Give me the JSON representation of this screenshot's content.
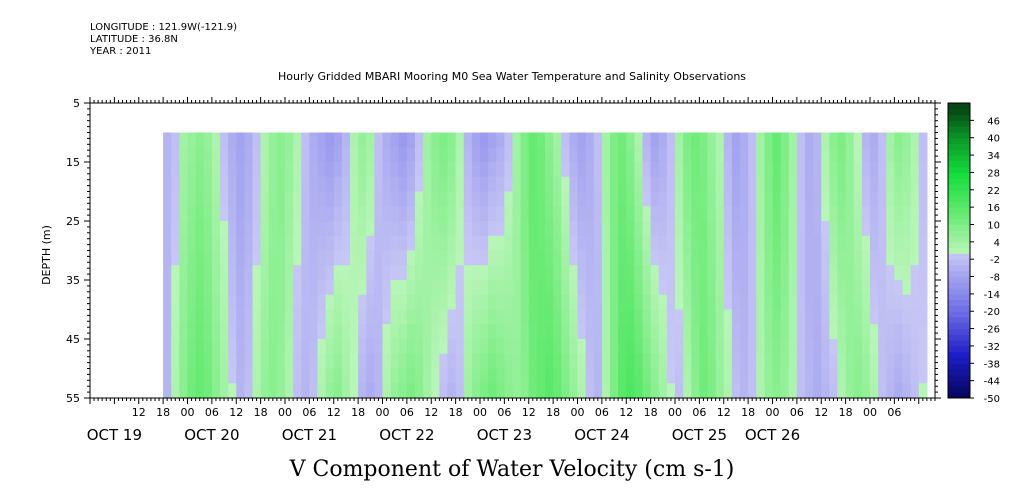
{
  "header": {
    "longitude": "LONGITUDE : 121.9W(-121.9)",
    "latitude": "LATITUDE : 36.8N",
    "year": "YEAR : 2011"
  },
  "chart_data": {
    "type": "heatmap",
    "title": "Hourly Gridded MBARI Mooring M0 Sea Water Temperature and Salinity Observations",
    "xlabel": "V Component of Water Velocity (cm s-1)",
    "ylabel": "DEPTH (m)",
    "ylim": [
      55,
      5
    ],
    "y_ticks": [
      5,
      15,
      25,
      35,
      45,
      55
    ],
    "data_depth_range": [
      10,
      55
    ],
    "x_hour_ticks": [
      "12",
      "18",
      "00",
      "06",
      "12",
      "18",
      "00",
      "06",
      "12",
      "18",
      "00",
      "06",
      "12",
      "18",
      "00",
      "06",
      "12",
      "18",
      "00",
      "06",
      "12",
      "18",
      "00",
      "06",
      "12",
      "18",
      "00",
      "06",
      "12",
      "18",
      "00",
      "06"
    ],
    "x_hour_ticks_hours_since_oct19_00": [
      12,
      18,
      24,
      30,
      36,
      42,
      48,
      54,
      60,
      66,
      72,
      78,
      84,
      90,
      96,
      102,
      108,
      114,
      120,
      126,
      132,
      138,
      144,
      150,
      156,
      162,
      168,
      174,
      180,
      186,
      192,
      198
    ],
    "x_day_labels": [
      "OCT 19",
      "OCT 20",
      "OCT 21",
      "OCT 22",
      "OCT 23",
      "OCT 24",
      "OCT 25",
      "OCT 26"
    ],
    "x_day_labels_hours": [
      6,
      30,
      54,
      78,
      102,
      126,
      150,
      168
    ],
    "x_data_range_hours": [
      18,
      206
    ],
    "columns_hours": [
      18,
      20,
      22,
      24,
      26,
      28,
      30,
      32,
      34,
      36,
      38,
      40,
      42,
      44,
      46,
      48,
      50,
      52,
      54,
      56,
      58,
      60,
      62,
      64,
      66,
      68,
      70,
      72,
      74,
      76,
      78,
      80,
      82,
      84,
      86,
      88,
      90,
      92,
      94,
      96,
      98,
      100,
      102,
      104,
      106,
      108,
      110,
      112,
      114,
      116,
      118,
      120,
      122,
      124,
      126,
      128,
      130,
      132,
      134,
      136,
      138,
      140,
      142,
      144,
      146,
      148,
      150,
      152,
      154,
      156,
      158,
      160,
      162,
      164,
      166,
      168,
      170,
      172,
      174,
      176,
      178,
      180,
      182,
      184,
      186,
      188,
      190,
      192,
      194,
      196,
      198,
      200,
      202,
      204
    ],
    "series_surface_10m": [
      -4,
      -2,
      4,
      6,
      8,
      6,
      2,
      -2,
      -6,
      -8,
      -6,
      -2,
      2,
      6,
      8,
      6,
      2,
      -2,
      -6,
      -8,
      -10,
      -8,
      -4,
      2,
      6,
      4,
      -2,
      -6,
      -8,
      -10,
      -8,
      -2,
      4,
      8,
      10,
      8,
      2,
      -4,
      -8,
      -10,
      -8,
      -6,
      -2,
      4,
      10,
      14,
      12,
      8,
      4,
      -2,
      -6,
      -8,
      -6,
      -2,
      4,
      10,
      12,
      8,
      2,
      -4,
      -8,
      -6,
      -2,
      4,
      10,
      12,
      10,
      6,
      2,
      -4,
      -8,
      -6,
      -2,
      4,
      10,
      14,
      10,
      4,
      -2,
      -6,
      -4,
      2,
      8,
      10,
      6,
      0,
      -4,
      -6,
      -2,
      4,
      8,
      6,
      2,
      -2
    ],
    "series_bottom_55m": [
      -4,
      2,
      8,
      12,
      14,
      12,
      8,
      4,
      0,
      -4,
      -2,
      2,
      6,
      8,
      6,
      2,
      -2,
      -4,
      -2,
      2,
      6,
      8,
      4,
      0,
      -4,
      -6,
      -4,
      2,
      6,
      8,
      10,
      8,
      4,
      0,
      -2,
      -4,
      -2,
      4,
      8,
      10,
      12,
      10,
      8,
      6,
      8,
      12,
      14,
      16,
      14,
      10,
      6,
      2,
      -2,
      -4,
      2,
      10,
      16,
      18,
      16,
      12,
      8,
      4,
      0,
      -2,
      2,
      8,
      12,
      10,
      6,
      2,
      -2,
      -4,
      -2,
      2,
      6,
      8,
      6,
      2,
      -2,
      -4,
      -6,
      -4,
      -2,
      2,
      6,
      8,
      6,
      2,
      -2,
      -4,
      -6,
      -4,
      -2,
      0
    ],
    "colorbar": {
      "ticks": [
        46,
        40,
        34,
        28,
        22,
        16,
        10,
        4,
        -2,
        -8,
        -14,
        -20,
        -26,
        -32,
        -38,
        -44,
        -50
      ],
      "range": [
        -50,
        52
      ]
    }
  }
}
